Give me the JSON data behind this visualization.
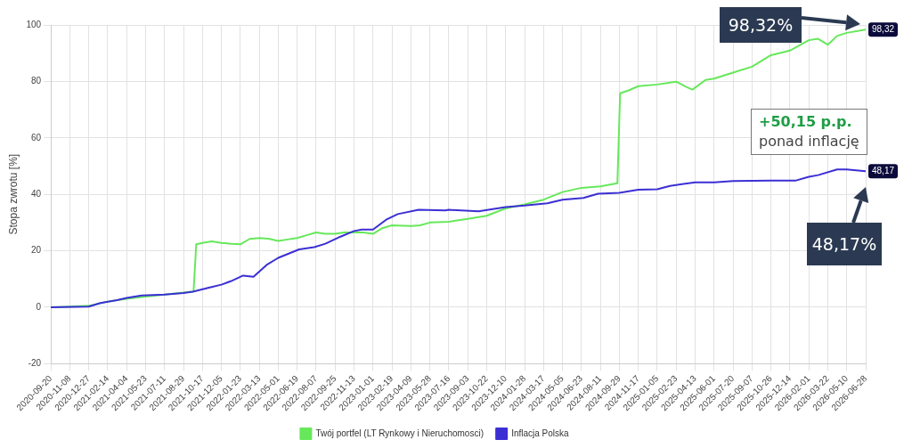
{
  "chart_data": {
    "type": "line",
    "ylabel": "Stopa zwrotu [%]",
    "xlim": [
      "2020-09-20",
      "2026-06-28"
    ],
    "xticks": [
      "2020-09-20",
      "2020-11-08",
      "2020-12-27",
      "2021-02-14",
      "2021-04-04",
      "2021-05-23",
      "2021-07-11",
      "2021-08-29",
      "2021-10-17",
      "2021-12-05",
      "2022-01-23",
      "2022-03-13",
      "2022-05-01",
      "2022-06-19",
      "2022-08-07",
      "2022-09-25",
      "2022-11-13",
      "2023-01-01",
      "2023-02-19",
      "2023-04-09",
      "2023-05-28",
      "2023-07-16",
      "2023-09-03",
      "2023-10-22",
      "2023-12-10",
      "2024-01-28",
      "2024-03-17",
      "2024-05-05",
      "2024-06-23",
      "2024-08-11",
      "2024-09-29",
      "2024-11-17",
      "2025-01-05",
      "2025-02-23",
      "2025-04-13",
      "2025-06-01",
      "2025-07-20",
      "2025-09-07",
      "2025-10-26",
      "2025-12-14",
      "2026-02-01",
      "2026-03-22",
      "2026-05-10",
      "2026-06-28"
    ],
    "ylim": [
      -20,
      100
    ],
    "yticks": [
      -20,
      0,
      20,
      40,
      60,
      80,
      100
    ],
    "grid": true,
    "legend": "bottom",
    "marker": "none",
    "line_style": "solid",
    "series": [
      {
        "name": "Twój portfel (LT Rynkowy i Nieruchomosci)",
        "color": "#66e85a",
        "x": [
          "2020-09-20",
          "2020-11-08",
          "2020-12-27",
          "2021-02-14",
          "2021-04-04",
          "2021-05-23",
          "2021-07-11",
          "2021-08-29",
          "2021-09-24",
          "2021-10-01",
          "2021-10-17",
          "2021-11-10",
          "2021-12-05",
          "2021-12-29",
          "2022-01-23",
          "2022-02-16",
          "2022-03-13",
          "2022-04-06",
          "2022-05-01",
          "2022-05-25",
          "2022-06-19",
          "2022-07-13",
          "2022-08-07",
          "2022-08-31",
          "2022-09-25",
          "2022-10-19",
          "2022-11-13",
          "2022-12-07",
          "2023-01-01",
          "2023-01-25",
          "2023-02-19",
          "2023-04-09",
          "2023-05-03",
          "2023-05-28",
          "2023-07-16",
          "2023-09-03",
          "2023-10-22",
          "2023-12-10",
          "2024-01-28",
          "2024-03-17",
          "2024-05-05",
          "2024-06-23",
          "2024-08-11",
          "2024-09-24",
          "2024-10-01",
          "2024-10-23",
          "2024-11-17",
          "2025-01-05",
          "2025-02-23",
          "2025-03-19",
          "2025-04-06",
          "2025-05-10",
          "2025-06-01",
          "2025-07-20",
          "2025-09-07",
          "2025-10-26",
          "2025-12-14",
          "2026-02-01",
          "2026-02-25",
          "2026-03-22",
          "2026-04-15",
          "2026-05-10",
          "2026-06-28"
        ],
        "values": [
          0,
          0.2,
          0.5,
          2,
          3,
          3.8,
          4.5,
          5.2,
          5.6,
          22.3,
          22.8,
          23.3,
          22.8,
          22.5,
          22.3,
          24.2,
          24.5,
          24.3,
          23.5,
          24,
          24.5,
          25.5,
          26.5,
          26,
          26,
          26.5,
          26.5,
          26.5,
          26,
          28,
          29,
          28.8,
          29,
          30,
          30.3,
          31.3,
          32.4,
          35,
          36.4,
          38.1,
          40.8,
          42.3,
          42.8,
          43.9,
          75.8,
          76.8,
          78.3,
          78.9,
          79.9,
          78.2,
          77.1,
          80.5,
          81,
          83.1,
          85.2,
          89.3,
          90.9,
          94.6,
          95.1,
          93,
          96.1,
          97.2,
          98.32
        ],
        "value_labels": [
          null,
          null,
          null,
          null,
          null,
          null,
          null,
          null,
          null,
          null,
          null,
          null,
          null,
          null,
          null,
          null,
          null,
          null,
          null,
          null,
          null,
          null,
          null,
          null,
          null,
          null,
          null,
          null,
          null,
          null,
          null,
          null,
          null,
          null,
          null,
          null,
          null,
          null,
          null,
          null,
          null,
          null,
          null,
          null,
          null,
          null,
          null,
          null,
          null,
          null,
          null,
          null,
          null,
          null,
          null,
          null,
          null,
          null,
          null,
          null,
          null,
          null,
          "98,32"
        ]
      },
      {
        "name": "Inflacja Polska",
        "color": "#3b2fd4",
        "x": [
          "2020-09-20",
          "2020-12-27",
          "2021-01-26",
          "2021-03-10",
          "2021-04-04",
          "2021-05-13",
          "2021-07-11",
          "2021-08-29",
          "2021-09-22",
          "2021-11-05",
          "2021-12-05",
          "2021-12-29",
          "2022-01-30",
          "2022-02-26",
          "2022-04-01",
          "2022-05-01",
          "2022-06-24",
          "2022-08-02",
          "2022-08-31",
          "2022-10-09",
          "2022-11-13",
          "2022-12-03",
          "2023-01-01",
          "2023-02-04",
          "2023-03-06",
          "2023-04-29",
          "2023-07-07",
          "2023-07-16",
          "2023-10-01",
          "2023-12-10",
          "2024-01-28",
          "2024-03-27",
          "2024-05-05",
          "2024-06-28",
          "2024-08-05",
          "2024-09-29",
          "2024-11-17",
          "2025-01-05",
          "2025-02-07",
          "2025-04-13",
          "2025-06-01",
          "2025-07-20",
          "2025-10-26",
          "2025-12-30",
          "2026-02-01",
          "2026-02-25",
          "2026-04-15",
          "2026-05-10",
          "2026-06-28"
        ],
        "values": [
          0,
          0.2,
          1.5,
          2.5,
          3.3,
          4.2,
          4.5,
          5,
          5.5,
          7,
          8,
          9.2,
          11.2,
          10.8,
          15,
          17.5,
          20.5,
          21.3,
          22.5,
          25,
          27,
          27.5,
          27.5,
          31,
          33,
          34.5,
          34.3,
          34.5,
          34,
          35.5,
          36,
          36.8,
          38.1,
          38.7,
          40.2,
          40.5,
          41.6,
          41.8,
          43,
          44.2,
          44.2,
          44.7,
          44.9,
          44.9,
          46.2,
          46.8,
          48.8,
          48.8,
          48.17
        ],
        "value_labels": [
          null,
          null,
          null,
          null,
          null,
          null,
          null,
          null,
          null,
          null,
          null,
          null,
          null,
          null,
          null,
          null,
          null,
          null,
          null,
          null,
          null,
          null,
          null,
          null,
          null,
          null,
          null,
          null,
          null,
          null,
          null,
          null,
          null,
          null,
          null,
          null,
          null,
          null,
          null,
          null,
          null,
          null,
          null,
          null,
          null,
          null,
          null,
          null,
          "48,17"
        ]
      }
    ],
    "annotations": [
      "98,32%",
      "48,17%",
      "+50,15 p.p.",
      "ponad inflację"
    ]
  }
}
